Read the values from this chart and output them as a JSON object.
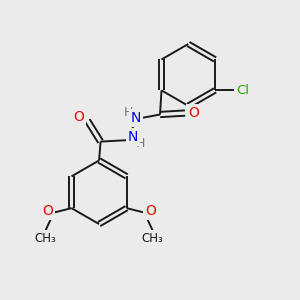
{
  "background_color": "#ebebeb",
  "bond_color": "#1a1a1a",
  "atom_colors": {
    "O": "#dd1100",
    "N": "#0000ee",
    "Cl": "#22aa00",
    "H": "#777777",
    "C": "#1a1a1a"
  },
  "figsize": [
    3.0,
    3.0
  ],
  "dpi": 100
}
